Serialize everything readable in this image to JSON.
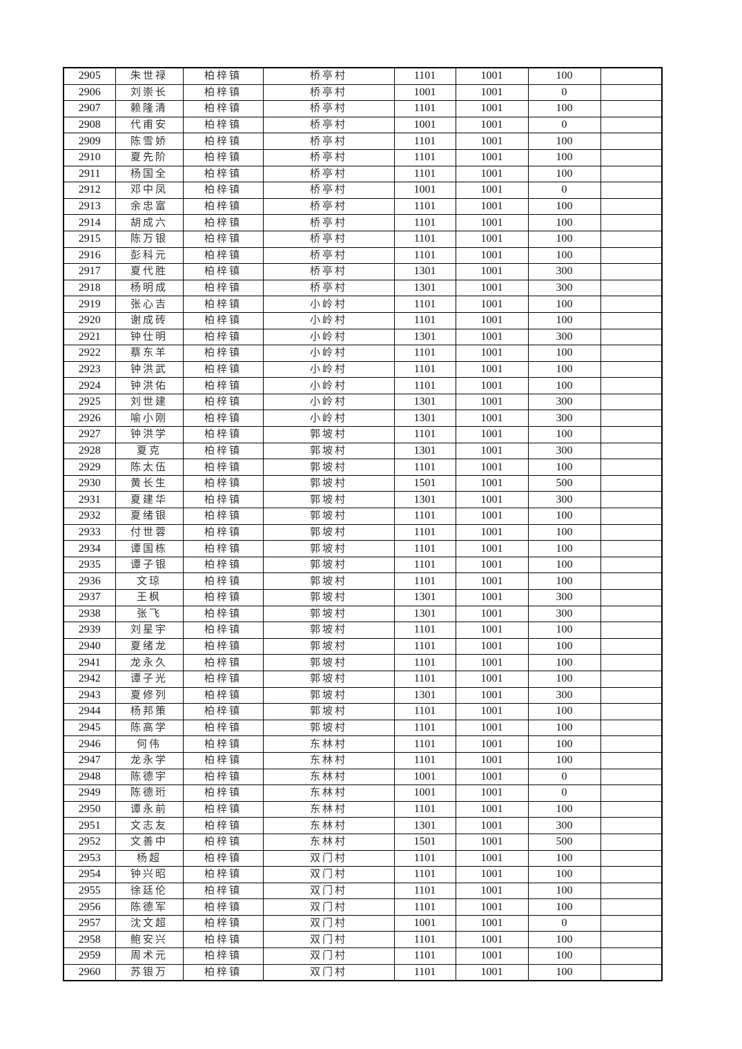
{
  "town": "柏梓镇",
  "rows": [
    [
      "2905",
      "朱世禄",
      "柏梓镇",
      "桥亭村",
      "1101",
      "1001",
      "100",
      ""
    ],
    [
      "2906",
      "刘崇长",
      "柏梓镇",
      "桥亭村",
      "1001",
      "1001",
      "0",
      ""
    ],
    [
      "2907",
      "赖隆清",
      "柏梓镇",
      "桥亭村",
      "1101",
      "1001",
      "100",
      ""
    ],
    [
      "2908",
      "代甫安",
      "柏梓镇",
      "桥亭村",
      "1001",
      "1001",
      "0",
      ""
    ],
    [
      "2909",
      "陈雪娇",
      "柏梓镇",
      "桥亭村",
      "1101",
      "1001",
      "100",
      ""
    ],
    [
      "2910",
      "夏先阶",
      "柏梓镇",
      "桥亭村",
      "1101",
      "1001",
      "100",
      ""
    ],
    [
      "2911",
      "杨国全",
      "柏梓镇",
      "桥亭村",
      "1101",
      "1001",
      "100",
      ""
    ],
    [
      "2912",
      "邓中凤",
      "柏梓镇",
      "桥亭村",
      "1001",
      "1001",
      "0",
      ""
    ],
    [
      "2913",
      "余忠富",
      "柏梓镇",
      "桥亭村",
      "1101",
      "1001",
      "100",
      ""
    ],
    [
      "2914",
      "胡成六",
      "柏梓镇",
      "桥亭村",
      "1101",
      "1001",
      "100",
      ""
    ],
    [
      "2915",
      "陈万银",
      "柏梓镇",
      "桥亭村",
      "1101",
      "1001",
      "100",
      ""
    ],
    [
      "2916",
      "彭科元",
      "柏梓镇",
      "桥亭村",
      "1101",
      "1001",
      "100",
      ""
    ],
    [
      "2917",
      "夏代胜",
      "柏梓镇",
      "桥亭村",
      "1301",
      "1001",
      "300",
      ""
    ],
    [
      "2918",
      "杨明成",
      "柏梓镇",
      "桥亭村",
      "1301",
      "1001",
      "300",
      ""
    ],
    [
      "2919",
      "张心吉",
      "柏梓镇",
      "小岭村",
      "1101",
      "1001",
      "100",
      ""
    ],
    [
      "2920",
      "谢成砖",
      "柏梓镇",
      "小岭村",
      "1101",
      "1001",
      "100",
      ""
    ],
    [
      "2921",
      "钟仕明",
      "柏梓镇",
      "小岭村",
      "1301",
      "1001",
      "300",
      ""
    ],
    [
      "2922",
      "蔡东羊",
      "柏梓镇",
      "小岭村",
      "1101",
      "1001",
      "100",
      ""
    ],
    [
      "2923",
      "钟洪武",
      "柏梓镇",
      "小岭村",
      "1101",
      "1001",
      "100",
      ""
    ],
    [
      "2924",
      "钟洪佑",
      "柏梓镇",
      "小岭村",
      "1101",
      "1001",
      "100",
      ""
    ],
    [
      "2925",
      "刘世建",
      "柏梓镇",
      "小岭村",
      "1301",
      "1001",
      "300",
      ""
    ],
    [
      "2926",
      "喻小刚",
      "柏梓镇",
      "小岭村",
      "1301",
      "1001",
      "300",
      ""
    ],
    [
      "2927",
      "钟洪学",
      "柏梓镇",
      "郭坡村",
      "1101",
      "1001",
      "100",
      ""
    ],
    [
      "2928",
      "夏克",
      "柏梓镇",
      "郭坡村",
      "1301",
      "1001",
      "300",
      ""
    ],
    [
      "2929",
      "陈太伍",
      "柏梓镇",
      "郭坡村",
      "1101",
      "1001",
      "100",
      ""
    ],
    [
      "2930",
      "黄长生",
      "柏梓镇",
      "郭坡村",
      "1501",
      "1001",
      "500",
      ""
    ],
    [
      "2931",
      "夏建华",
      "柏梓镇",
      "郭坡村",
      "1301",
      "1001",
      "300",
      ""
    ],
    [
      "2932",
      "夏绪银",
      "柏梓镇",
      "郭坡村",
      "1101",
      "1001",
      "100",
      ""
    ],
    [
      "2933",
      "付世蓉",
      "柏梓镇",
      "郭坡村",
      "1101",
      "1001",
      "100",
      ""
    ],
    [
      "2934",
      "谭国栋",
      "柏梓镇",
      "郭坡村",
      "1101",
      "1001",
      "100",
      ""
    ],
    [
      "2935",
      "谭子银",
      "柏梓镇",
      "郭坡村",
      "1101",
      "1001",
      "100",
      ""
    ],
    [
      "2936",
      "文琼",
      "柏梓镇",
      "郭坡村",
      "1101",
      "1001",
      "100",
      ""
    ],
    [
      "2937",
      "王枫",
      "柏梓镇",
      "郭坡村",
      "1301",
      "1001",
      "300",
      ""
    ],
    [
      "2938",
      "张飞",
      "柏梓镇",
      "郭坡村",
      "1301",
      "1001",
      "300",
      ""
    ],
    [
      "2939",
      "刘星宇",
      "柏梓镇",
      "郭坡村",
      "1101",
      "1001",
      "100",
      ""
    ],
    [
      "2940",
      "夏绪龙",
      "柏梓镇",
      "郭坡村",
      "1101",
      "1001",
      "100",
      ""
    ],
    [
      "2941",
      "龙永久",
      "柏梓镇",
      "郭坡村",
      "1101",
      "1001",
      "100",
      ""
    ],
    [
      "2942",
      "谭子光",
      "柏梓镇",
      "郭坡村",
      "1101",
      "1001",
      "100",
      ""
    ],
    [
      "2943",
      "夏修列",
      "柏梓镇",
      "郭坡村",
      "1301",
      "1001",
      "300",
      ""
    ],
    [
      "2944",
      "杨邦策",
      "柏梓镇",
      "郭坡村",
      "1101",
      "1001",
      "100",
      ""
    ],
    [
      "2945",
      "陈高学",
      "柏梓镇",
      "郭坡村",
      "1101",
      "1001",
      "100",
      ""
    ],
    [
      "2946",
      "何伟",
      "柏梓镇",
      "东林村",
      "1101",
      "1001",
      "100",
      ""
    ],
    [
      "2947",
      "龙永学",
      "柏梓镇",
      "东林村",
      "1101",
      "1001",
      "100",
      ""
    ],
    [
      "2948",
      "陈德宇",
      "柏梓镇",
      "东林村",
      "1001",
      "1001",
      "0",
      ""
    ],
    [
      "2949",
      "陈德珩",
      "柏梓镇",
      "东林村",
      "1001",
      "1001",
      "0",
      ""
    ],
    [
      "2950",
      "谭永前",
      "柏梓镇",
      "东林村",
      "1101",
      "1001",
      "100",
      ""
    ],
    [
      "2951",
      "文志友",
      "柏梓镇",
      "东林村",
      "1301",
      "1001",
      "300",
      ""
    ],
    [
      "2952",
      "文善中",
      "柏梓镇",
      "东林村",
      "1501",
      "1001",
      "500",
      ""
    ],
    [
      "2953",
      "杨超",
      "柏梓镇",
      "双门村",
      "1101",
      "1001",
      "100",
      ""
    ],
    [
      "2954",
      "钟兴昭",
      "柏梓镇",
      "双门村",
      "1101",
      "1001",
      "100",
      ""
    ],
    [
      "2955",
      "徐廷伦",
      "柏梓镇",
      "双门村",
      "1101",
      "1001",
      "100",
      ""
    ],
    [
      "2956",
      "陈德军",
      "柏梓镇",
      "双门村",
      "1101",
      "1001",
      "100",
      ""
    ],
    [
      "2957",
      "沈文超",
      "柏梓镇",
      "双门村",
      "1001",
      "1001",
      "0",
      ""
    ],
    [
      "2958",
      "鲍安兴",
      "柏梓镇",
      "双门村",
      "1101",
      "1001",
      "100",
      ""
    ],
    [
      "2959",
      "周术元",
      "柏梓镇",
      "双门村",
      "1101",
      "1001",
      "100",
      ""
    ],
    [
      "2960",
      "苏银万",
      "柏梓镇",
      "双门村",
      "1101",
      "1001",
      "100",
      ""
    ]
  ]
}
